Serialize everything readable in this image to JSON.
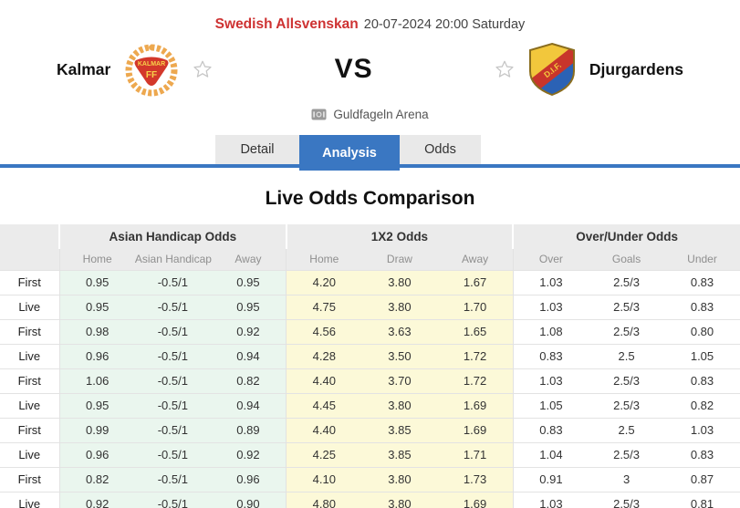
{
  "match_header": {
    "league": "Swedish Allsvenskan",
    "kickoff": "20-07-2024 20:00 Saturday",
    "home_team": "Kalmar",
    "away_team": "Djurgardens",
    "vs_label": "VS",
    "venue": "Guldfageln Arena"
  },
  "tabs": [
    {
      "label": "Detail",
      "active": false
    },
    {
      "label": "Analysis",
      "active": true
    },
    {
      "label": "Odds",
      "active": false
    }
  ],
  "section_title": "Live Odds Comparison",
  "odds_table": {
    "group_headers": [
      "Asian Handicap Odds",
      "1X2 Odds",
      "Over/Under Odds"
    ],
    "sub_headers": [
      "Home",
      "Asian Handicap",
      "Away",
      "Home",
      "Draw",
      "Away",
      "Over",
      "Goals",
      "Under"
    ],
    "rows": [
      {
        "label": "First",
        "values": [
          "0.95",
          "-0.5/1",
          "0.95",
          "4.20",
          "3.80",
          "1.67",
          "1.03",
          "2.5/3",
          "0.83"
        ]
      },
      {
        "label": "Live",
        "values": [
          "0.95",
          "-0.5/1",
          "0.95",
          "4.75",
          "3.80",
          "1.70",
          "1.03",
          "2.5/3",
          "0.83"
        ]
      },
      {
        "label": "First",
        "values": [
          "0.98",
          "-0.5/1",
          "0.92",
          "4.56",
          "3.63",
          "1.65",
          "1.08",
          "2.5/3",
          "0.80"
        ]
      },
      {
        "label": "Live",
        "values": [
          "0.96",
          "-0.5/1",
          "0.94",
          "4.28",
          "3.50",
          "1.72",
          "0.83",
          "2.5",
          "1.05"
        ]
      },
      {
        "label": "First",
        "values": [
          "1.06",
          "-0.5/1",
          "0.82",
          "4.40",
          "3.70",
          "1.72",
          "1.03",
          "2.5/3",
          "0.83"
        ]
      },
      {
        "label": "Live",
        "values": [
          "0.95",
          "-0.5/1",
          "0.94",
          "4.45",
          "3.80",
          "1.69",
          "1.05",
          "2.5/3",
          "0.82"
        ]
      },
      {
        "label": "First",
        "values": [
          "0.99",
          "-0.5/1",
          "0.89",
          "4.40",
          "3.85",
          "1.69",
          "0.83",
          "2.5",
          "1.03"
        ]
      },
      {
        "label": "Live",
        "values": [
          "0.96",
          "-0.5/1",
          "0.92",
          "4.25",
          "3.85",
          "1.71",
          "1.04",
          "2.5/3",
          "0.83"
        ]
      },
      {
        "label": "First",
        "values": [
          "0.82",
          "-0.5/1",
          "0.96",
          "4.10",
          "3.80",
          "1.73",
          "0.91",
          "3",
          "0.87"
        ]
      },
      {
        "label": "Live",
        "values": [
          "0.92",
          "-0.5/1",
          "0.90",
          "4.80",
          "3.80",
          "1.69",
          "1.03",
          "2.5/3",
          "0.81"
        ]
      }
    ]
  },
  "icons": {
    "home_favorite": "star-outline",
    "away_favorite": "star-outline",
    "venue_icon": "stadium"
  },
  "colors": {
    "accent_blue": "#3a77c2",
    "league_red": "#ce3232",
    "asian_handicap_bg": "#eaf6ee",
    "x12_bg": "#fcf9d8"
  }
}
